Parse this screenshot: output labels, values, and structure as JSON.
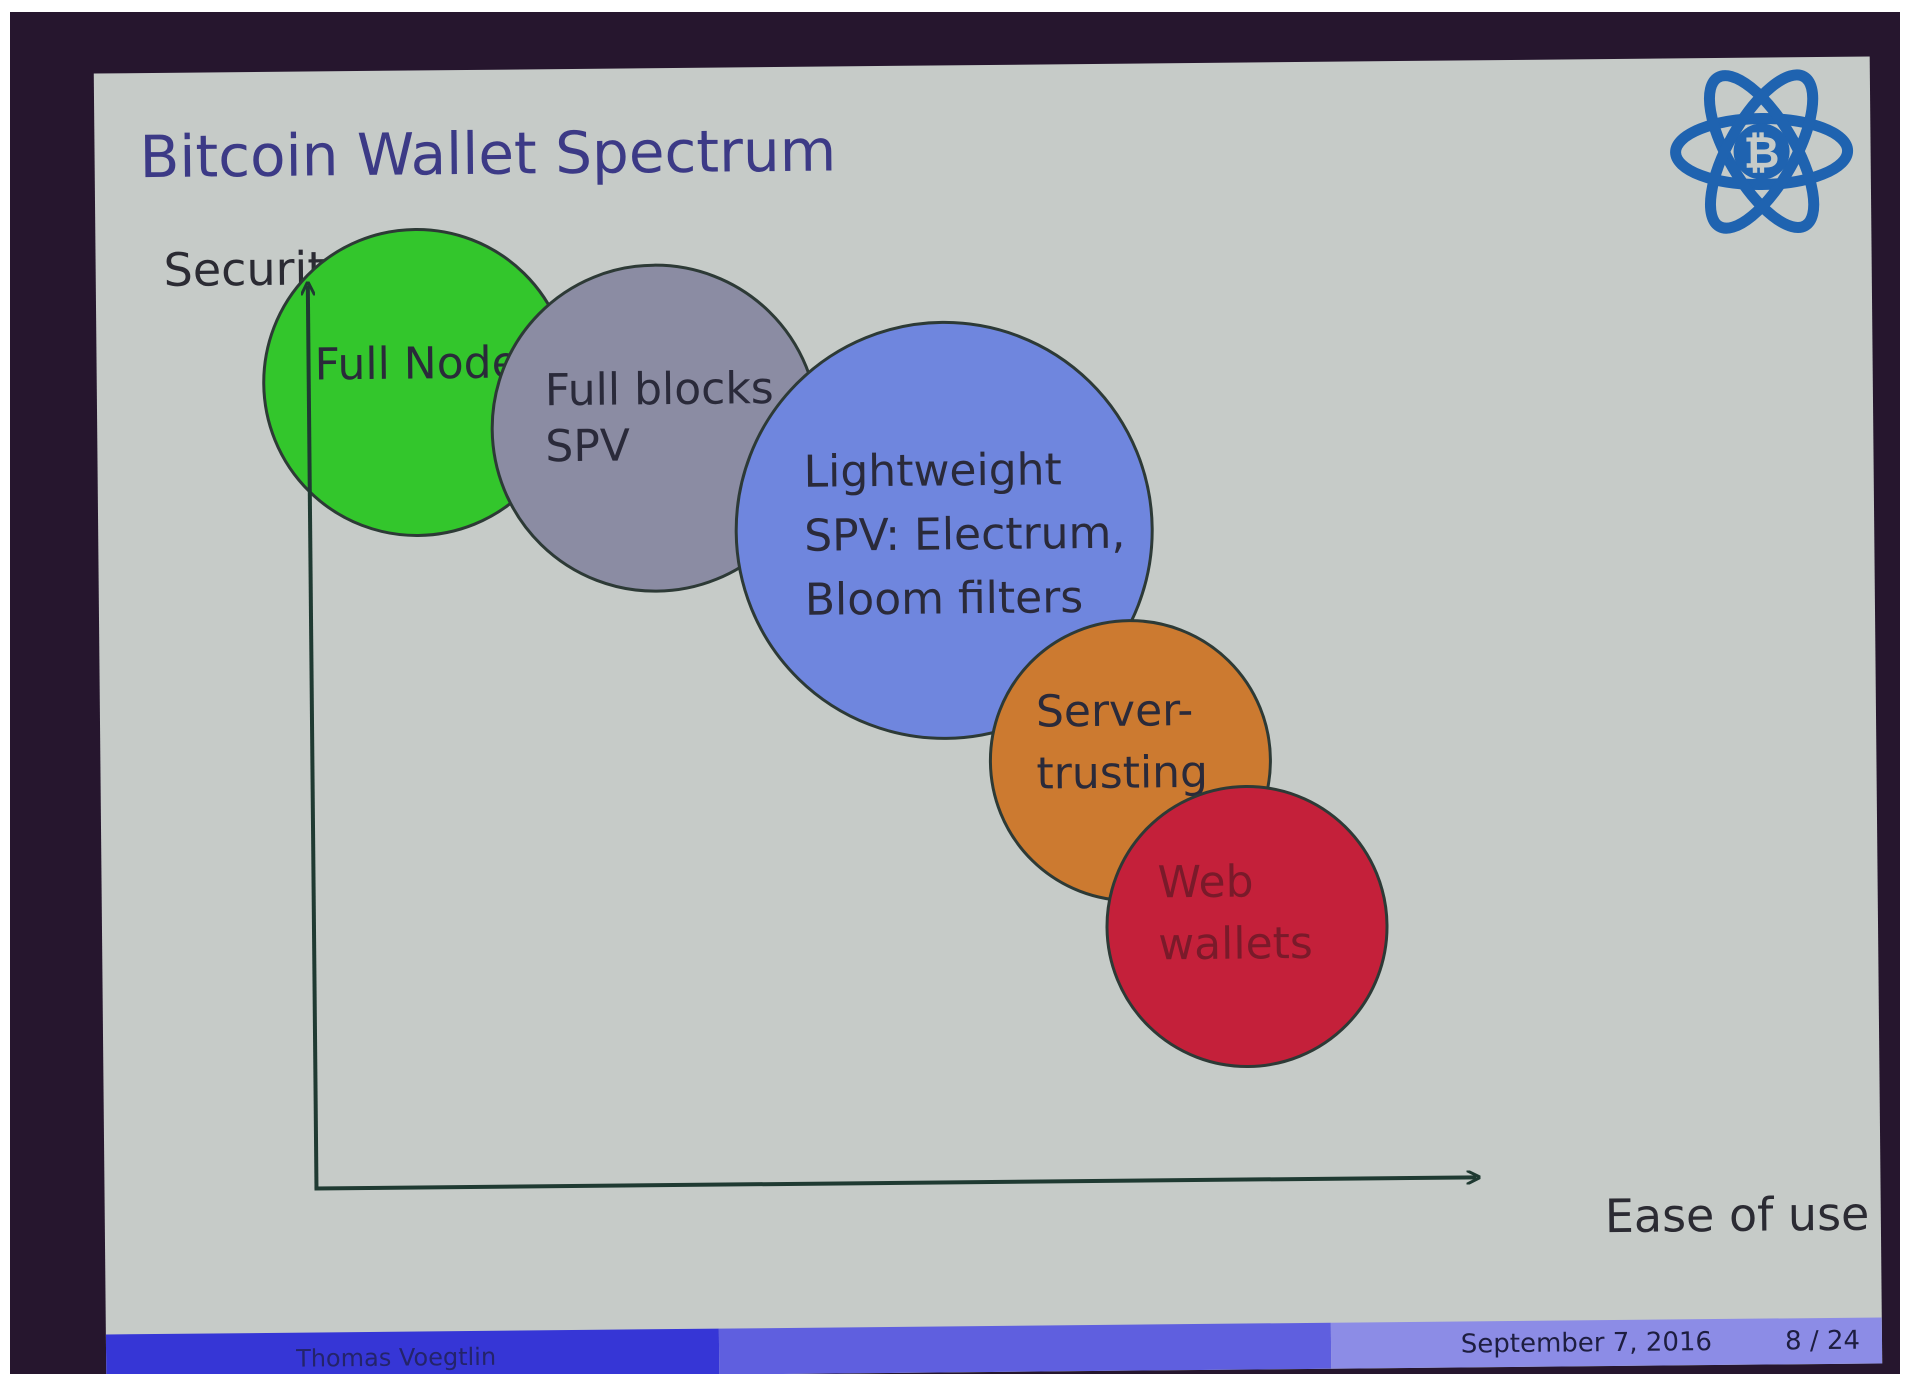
{
  "slide": {
    "title": "Bitcoin Wallet Spectrum"
  },
  "axes": {
    "y_label": "Security",
    "x_label": "Ease of use"
  },
  "categories": [
    {
      "id": "full-node",
      "lines": [
        "Full Node"
      ],
      "color": "#33c62c",
      "security_rank": 5,
      "ease_rank": 1
    },
    {
      "id": "full-blocks-spv",
      "lines": [
        "Full blocks",
        "SPV"
      ],
      "color": "#8b8ca3",
      "security_rank": 4,
      "ease_rank": 2
    },
    {
      "id": "lightweight-spv",
      "lines": [
        "Lightweight",
        "SPV: Electrum,",
        "Bloom filters"
      ],
      "color": "#6f86de",
      "security_rank": 3,
      "ease_rank": 3
    },
    {
      "id": "server-trusting",
      "lines": [
        "Server-",
        "trusting"
      ],
      "color": "#cc7a30",
      "security_rank": 2,
      "ease_rank": 4
    },
    {
      "id": "web-wallets",
      "lines": [
        "Web",
        "wallets"
      ],
      "color": "#c4203a",
      "security_rank": 1,
      "ease_rank": 5
    }
  ],
  "footer": {
    "author": "Thomas Voegtlin",
    "date": "September 7, 2016",
    "page": "8 / 24"
  },
  "logo": {
    "icon": "electrum-bitcoin-atom-icon",
    "symbol": "₿",
    "color": "#1f63b0"
  }
}
